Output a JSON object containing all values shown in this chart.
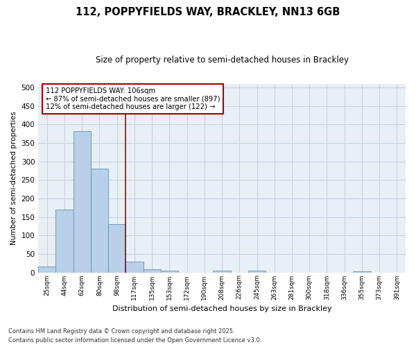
{
  "title1": "112, POPPYFIELDS WAY, BRACKLEY, NN13 6GB",
  "title2": "Size of property relative to semi-detached houses in Brackley",
  "xlabel": "Distribution of semi-detached houses by size in Brackley",
  "ylabel": "Number of semi-detached properties",
  "bins": [
    "25sqm",
    "44sqm",
    "62sqm",
    "80sqm",
    "98sqm",
    "117sqm",
    "135sqm",
    "153sqm",
    "172sqm",
    "190sqm",
    "208sqm",
    "226sqm",
    "245sqm",
    "263sqm",
    "281sqm",
    "300sqm",
    "318sqm",
    "336sqm",
    "355sqm",
    "373sqm",
    "391sqm"
  ],
  "values": [
    16,
    170,
    382,
    280,
    130,
    30,
    9,
    5,
    0,
    0,
    5,
    0,
    5,
    0,
    0,
    0,
    0,
    0,
    3,
    0,
    0
  ],
  "bar_color": "#b8d0e8",
  "bar_edge_color": "#6090b8",
  "grid_color": "#c0d0e0",
  "background_color": "#e8eff5",
  "vline_x_idx": 4.5,
  "vline_color": "#aa0000",
  "annotation_line1": "112 POPPYFIELDS WAY: 106sqm",
  "annotation_line2": "← 87% of semi-detached houses are smaller (897)",
  "annotation_line3": "12% of semi-detached houses are larger (122) →",
  "annotation_box_color": "#aa0000",
  "ylim": [
    0,
    510
  ],
  "yticks": [
    0,
    50,
    100,
    150,
    200,
    250,
    300,
    350,
    400,
    450,
    500
  ],
  "footnote1": "Contains HM Land Registry data © Crown copyright and database right 2025.",
  "footnote2": "Contains public sector information licensed under the Open Government Licence v3.0."
}
